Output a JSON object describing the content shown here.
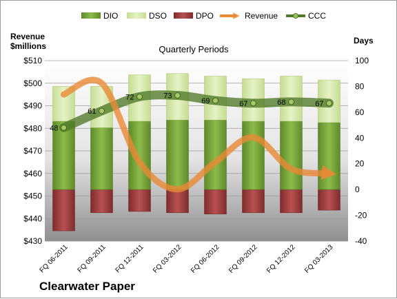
{
  "chart_data": {
    "type": "bar",
    "title": "Quarterly Periods",
    "left_axis_label_line1": "Revenue",
    "left_axis_label_line2": "$millions",
    "right_axis_label": "Days",
    "company": "Clearwater Paper",
    "categories": [
      "FQ 06-2011",
      "FQ 09-2011",
      "FQ 12-2011",
      "FQ 03-2012",
      "FQ 06-2012",
      "FQ 09-2012",
      "FQ 12-2012",
      "FQ 03-2013"
    ],
    "left_ylim": [
      430,
      510
    ],
    "left_ticks": [
      "$430",
      "$440",
      "$450",
      "$460",
      "$470",
      "$480",
      "$490",
      "$500",
      "$510"
    ],
    "right_ylim": [
      -40,
      100
    ],
    "right_ticks": [
      "-40",
      "-20",
      "0",
      "20",
      "40",
      "60",
      "80",
      "100"
    ],
    "legend": [
      "DIO",
      "DSO",
      "DPO",
      "Revenue",
      "CCC"
    ],
    "legend_position": "top",
    "series": [
      {
        "name": "DIO",
        "axis": "right",
        "color": "#76a33c",
        "values": [
          53,
          48,
          53,
          54,
          54,
          53,
          53,
          52
        ]
      },
      {
        "name": "DSO",
        "axis": "right",
        "color": "#d4e7a8",
        "values": [
          27,
          32,
          36,
          36,
          34,
          33,
          35,
          33
        ]
      },
      {
        "name": "DPO",
        "axis": "right",
        "color": "#9b3a3a",
        "values": [
          -32,
          -18,
          -17,
          -18,
          -19,
          -18,
          -18,
          -16
        ]
      },
      {
        "name": "Revenue",
        "axis": "left",
        "color": "#ea8a34",
        "values": [
          495,
          500,
          465,
          453,
          465,
          476,
          462,
          460
        ]
      },
      {
        "name": "CCC",
        "axis": "right",
        "color": "#4f7a28",
        "values": [
          48,
          61,
          72,
          73,
          69,
          67,
          68,
          67
        ]
      }
    ],
    "ccc_labels": [
      "48",
      "61",
      "72",
      "73",
      "69",
      "67",
      "68",
      "67"
    ],
    "grid": true
  }
}
